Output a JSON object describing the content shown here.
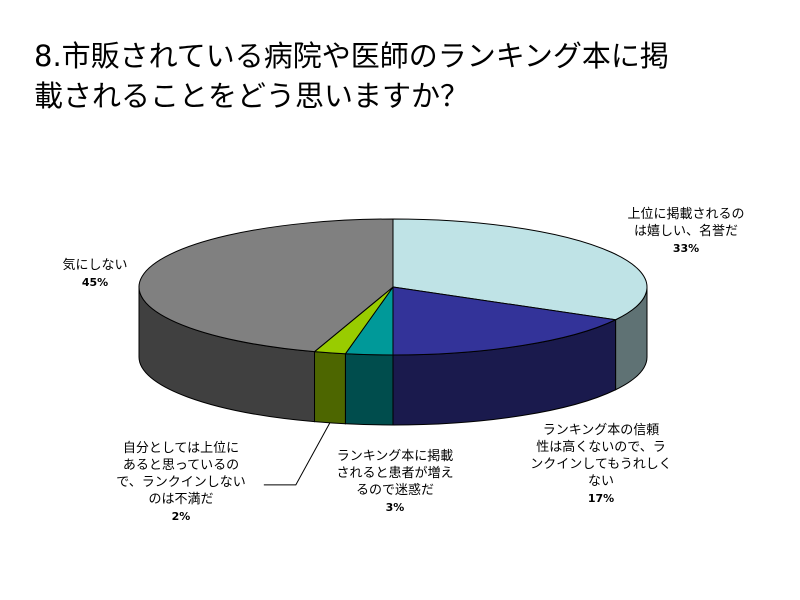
{
  "title_lines": [
    "8.市販されている病院や医師のランキング本に掲",
    "載されることをどう思いますか？"
  ],
  "colors": {
    "slice_top": [
      "#bfe3e6",
      "#333399",
      "#009999",
      "#99cc00",
      "#808080"
    ],
    "slice_side": [
      "#5f7274",
      "#1a1a4d",
      "#004d4d",
      "#4d6600",
      "#404040"
    ],
    "outline": "#000000"
  },
  "chart_data": {
    "type": "pie",
    "title": "8.市販されている病院や医師のランキング本に掲載されることをどう思いますか？",
    "categories": [
      "上位に掲載されるのは嬉しい、名誉だ",
      "ランキング本の信頼性は高くないので、ランクインしてもうれしくない",
      "ランキング本に掲載されると患者が増えるので迷惑だ",
      "自分としては上位にあると思っているので、ランクインしないのは不満だ",
      "気にしない"
    ],
    "values": [
      33,
      17,
      3,
      2,
      45
    ],
    "value_labels": [
      "33%",
      "17%",
      "3%",
      "2%",
      "45%"
    ],
    "label_lines": [
      [
        "上位に掲載されるの",
        "は嬉しい、名誉だ"
      ],
      [
        "ランキング本の信頼",
        "性は高くないので、ラ",
        "ンクインしてもうれしく",
        "ない"
      ],
      [
        "ランキング本に掲載",
        "されると患者が増え",
        "るので迷惑だ"
      ],
      [
        "自分としては上位に",
        "あると思っているの",
        "で、ランクインしない",
        "のは不満だ"
      ],
      [
        "気にしない"
      ]
    ],
    "style": "3d-pie"
  }
}
